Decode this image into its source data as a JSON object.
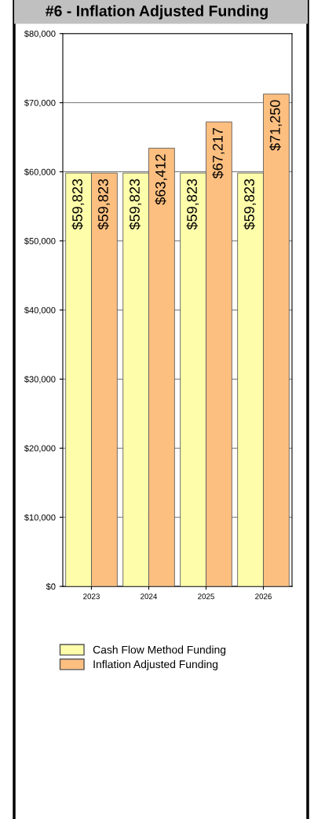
{
  "chart_data": {
    "type": "bar",
    "title": "#6 - Inflation Adjusted Funding",
    "categories": [
      "2023",
      "2024",
      "2025",
      "2026"
    ],
    "series": [
      {
        "name": "Cash Flow Method Funding",
        "color": "#fdfdaa",
        "values": [
          59823,
          59823,
          59823,
          59823
        ],
        "value_labels": [
          "$59,823",
          "$59,823",
          "$59,823",
          "$59,823"
        ]
      },
      {
        "name": "Inflation Adjusted Funding",
        "color": "#fdbf80",
        "values": [
          59823,
          63412,
          67217,
          71250
        ],
        "value_labels": [
          "$59,823",
          "$63,412",
          "$67,217",
          "$71,250"
        ]
      }
    ],
    "ylim": [
      0,
      80000
    ],
    "yticks": [
      {
        "value": 0,
        "label": "$0"
      },
      {
        "value": 10000,
        "label": "$10,000"
      },
      {
        "value": 20000,
        "label": "$20,000"
      },
      {
        "value": 30000,
        "label": "$30,000"
      },
      {
        "value": 40000,
        "label": "$40,000"
      },
      {
        "value": 50000,
        "label": "$50,000"
      },
      {
        "value": 60000,
        "label": "$60,000"
      },
      {
        "value": 70000,
        "label": "$70,000"
      },
      {
        "value": 80000,
        "label": "$80,000"
      }
    ],
    "grid": "y",
    "legend": "bottom"
  }
}
